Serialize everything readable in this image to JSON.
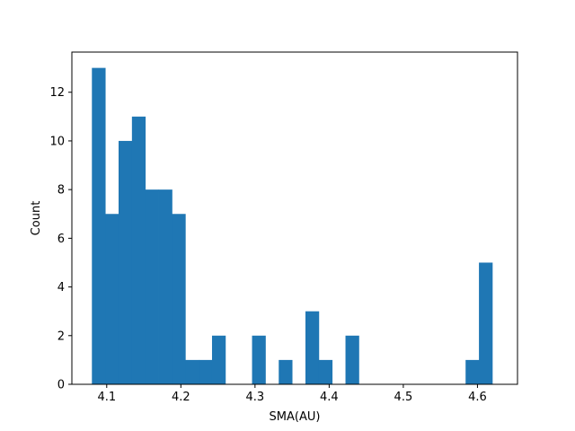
{
  "chart_data": {
    "type": "bar",
    "title": "",
    "xlabel": "SMA(AU)",
    "ylabel": "Count",
    "color": "#1f77b4",
    "bin_start": 4.08,
    "bin_width": 0.018,
    "counts": [
      13,
      7,
      10,
      11,
      8,
      8,
      7,
      1,
      1,
      2,
      0,
      0,
      2,
      0,
      1,
      0,
      3,
      1,
      0,
      2,
      0,
      0,
      0,
      0,
      0,
      0,
      0,
      0,
      1,
      5
    ],
    "xlim": [
      4.053,
      4.654
    ],
    "ylim": [
      0,
      13.65
    ],
    "x_ticks": [
      4.1,
      4.2,
      4.3,
      4.4,
      4.5,
      4.6
    ],
    "x_tick_labels": [
      "4.1",
      "4.2",
      "4.3",
      "4.4",
      "4.5",
      "4.6"
    ],
    "y_ticks": [
      0,
      2,
      4,
      6,
      8,
      10,
      12
    ],
    "y_tick_labels": [
      "0",
      "2",
      "4",
      "6",
      "8",
      "10",
      "12"
    ],
    "grid": false,
    "legend": "none"
  }
}
